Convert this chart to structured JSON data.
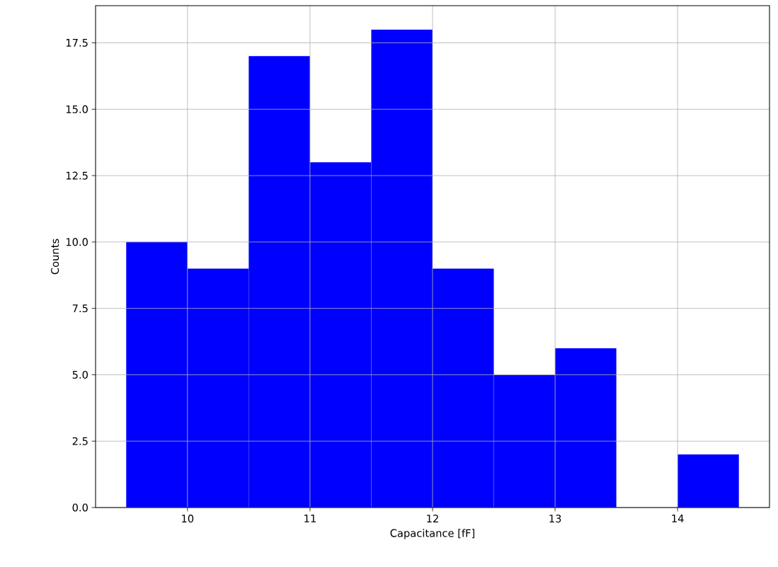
{
  "chart_data": {
    "type": "histogram",
    "xlabel": "Capacitance [fF]",
    "ylabel": "Counts",
    "bins": [
      9.5,
      10,
      10.5,
      11,
      11.5,
      12,
      12.5,
      13,
      13.5,
      14,
      14.5
    ],
    "values": [
      10,
      9,
      17,
      13,
      18,
      9,
      5,
      6,
      0,
      2
    ],
    "color": "#0000ff",
    "xlim": [
      9.25,
      14.75
    ],
    "ylim": [
      0,
      18.9
    ],
    "xticks": [
      10,
      11,
      12,
      13,
      14
    ],
    "yticks": [
      {
        "value": 0,
        "label": "0.0"
      },
      {
        "value": 2.5,
        "label": "2.5"
      },
      {
        "value": 5,
        "label": "5.0"
      },
      {
        "value": 7.5,
        "label": "7.5"
      },
      {
        "value": 10,
        "label": "10.0"
      },
      {
        "value": 12.5,
        "label": "12.5"
      },
      {
        "value": 15,
        "label": "15.0"
      },
      {
        "value": 17.5,
        "label": "17.5"
      }
    ],
    "grid": true
  }
}
